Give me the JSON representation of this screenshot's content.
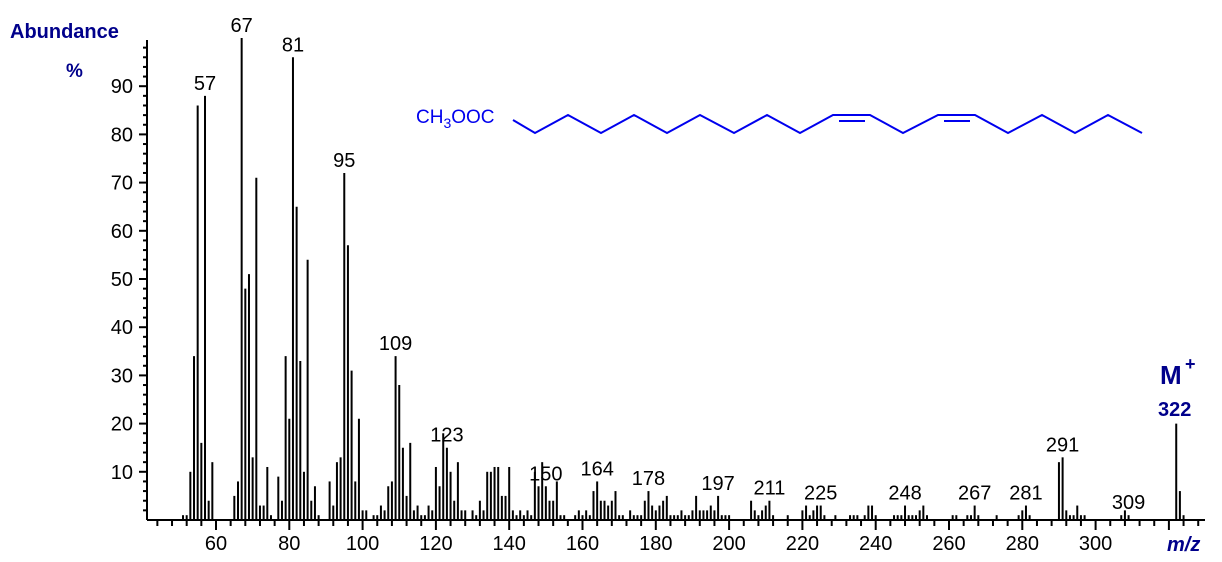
{
  "chart_data": {
    "type": "bar",
    "title": "",
    "ylabel": "Abundance",
    "ylabel_unit": "%",
    "xlabel": "m/z",
    "xlim": [
      40,
      330
    ],
    "ylim": [
      0,
      100
    ],
    "grid": false,
    "yticks": [
      10,
      20,
      30,
      40,
      50,
      60,
      70,
      80,
      90
    ],
    "xticks": [
      60,
      80,
      100,
      120,
      140,
      160,
      180,
      200,
      220,
      240,
      260,
      280,
      300
    ],
    "peaks": [
      [
        51,
        1
      ],
      [
        52,
        1
      ],
      [
        53,
        10
      ],
      [
        54,
        34
      ],
      [
        55,
        86
      ],
      [
        56,
        16
      ],
      [
        57,
        88
      ],
      [
        58,
        4
      ],
      [
        59,
        12
      ],
      [
        65,
        5
      ],
      [
        66,
        8
      ],
      [
        67,
        100
      ],
      [
        68,
        48
      ],
      [
        69,
        51
      ],
      [
        70,
        13
      ],
      [
        71,
        71
      ],
      [
        72,
        3
      ],
      [
        73,
        3
      ],
      [
        74,
        11
      ],
      [
        75,
        1
      ],
      [
        77,
        9
      ],
      [
        78,
        4
      ],
      [
        79,
        34
      ],
      [
        80,
        21
      ],
      [
        81,
        96
      ],
      [
        82,
        65
      ],
      [
        83,
        33
      ],
      [
        84,
        10
      ],
      [
        85,
        54
      ],
      [
        86,
        4
      ],
      [
        87,
        7
      ],
      [
        88,
        1
      ],
      [
        91,
        8
      ],
      [
        92,
        3
      ],
      [
        93,
        12
      ],
      [
        94,
        13
      ],
      [
        95,
        72
      ],
      [
        96,
        57
      ],
      [
        97,
        31
      ],
      [
        98,
        8
      ],
      [
        99,
        21
      ],
      [
        100,
        2
      ],
      [
        101,
        2
      ],
      [
        103,
        1
      ],
      [
        104,
        1
      ],
      [
        105,
        3
      ],
      [
        106,
        2
      ],
      [
        107,
        7
      ],
      [
        108,
        8
      ],
      [
        109,
        34
      ],
      [
        110,
        28
      ],
      [
        111,
        15
      ],
      [
        112,
        5
      ],
      [
        113,
        16
      ],
      [
        114,
        2
      ],
      [
        115,
        3
      ],
      [
        116,
        1
      ],
      [
        117,
        1
      ],
      [
        118,
        3
      ],
      [
        119,
        2
      ],
      [
        120,
        11
      ],
      [
        121,
        7
      ],
      [
        122,
        18
      ],
      [
        123,
        15
      ],
      [
        124,
        10
      ],
      [
        125,
        4
      ],
      [
        126,
        12
      ],
      [
        127,
        2
      ],
      [
        128,
        2
      ],
      [
        130,
        2
      ],
      [
        131,
        1
      ],
      [
        132,
        4
      ],
      [
        133,
        2
      ],
      [
        134,
        10
      ],
      [
        135,
        10
      ],
      [
        136,
        11
      ],
      [
        137,
        11
      ],
      [
        138,
        5
      ],
      [
        139,
        5
      ],
      [
        140,
        11
      ],
      [
        141,
        2
      ],
      [
        142,
        1
      ],
      [
        143,
        2
      ],
      [
        144,
        1
      ],
      [
        145,
        2
      ],
      [
        146,
        1
      ],
      [
        147,
        10
      ],
      [
        148,
        7
      ],
      [
        149,
        12
      ],
      [
        150,
        7
      ],
      [
        151,
        4
      ],
      [
        152,
        4
      ],
      [
        153,
        8
      ],
      [
        154,
        1
      ],
      [
        155,
        1
      ],
      [
        158,
        1
      ],
      [
        159,
        2
      ],
      [
        160,
        1
      ],
      [
        161,
        2
      ],
      [
        162,
        1
      ],
      [
        163,
        6
      ],
      [
        164,
        8
      ],
      [
        165,
        4
      ],
      [
        166,
        4
      ],
      [
        167,
        3
      ],
      [
        168,
        4
      ],
      [
        169,
        6
      ],
      [
        170,
        1
      ],
      [
        171,
        1
      ],
      [
        173,
        2
      ],
      [
        174,
        1
      ],
      [
        175,
        1
      ],
      [
        176,
        1
      ],
      [
        177,
        4
      ],
      [
        178,
        6
      ],
      [
        179,
        3
      ],
      [
        180,
        2
      ],
      [
        181,
        3
      ],
      [
        182,
        4
      ],
      [
        183,
        5
      ],
      [
        184,
        1
      ],
      [
        185,
        1
      ],
      [
        186,
        1
      ],
      [
        187,
        2
      ],
      [
        188,
        1
      ],
      [
        189,
        1
      ],
      [
        190,
        2
      ],
      [
        191,
        5
      ],
      [
        192,
        2
      ],
      [
        193,
        2
      ],
      [
        194,
        2
      ],
      [
        195,
        3
      ],
      [
        196,
        2
      ],
      [
        197,
        5
      ],
      [
        198,
        1
      ],
      [
        199,
        1
      ],
      [
        200,
        1
      ],
      [
        206,
        4
      ],
      [
        207,
        2
      ],
      [
        208,
        1
      ],
      [
        209,
        2
      ],
      [
        210,
        3
      ],
      [
        211,
        4
      ],
      [
        212,
        1
      ],
      [
        216,
        1
      ],
      [
        220,
        2
      ],
      [
        221,
        3
      ],
      [
        222,
        1
      ],
      [
        223,
        2
      ],
      [
        224,
        3
      ],
      [
        225,
        3
      ],
      [
        226,
        1
      ],
      [
        229,
        1
      ],
      [
        233,
        1
      ],
      [
        234,
        1
      ],
      [
        235,
        1
      ],
      [
        237,
        1
      ],
      [
        238,
        3
      ],
      [
        239,
        3
      ],
      [
        240,
        1
      ],
      [
        245,
        1
      ],
      [
        246,
        1
      ],
      [
        247,
        1
      ],
      [
        248,
        3
      ],
      [
        249,
        1
      ],
      [
        250,
        1
      ],
      [
        251,
        1
      ],
      [
        252,
        2
      ],
      [
        253,
        3
      ],
      [
        254,
        1
      ],
      [
        261,
        1
      ],
      [
        262,
        1
      ],
      [
        265,
        1
      ],
      [
        266,
        1
      ],
      [
        267,
        3
      ],
      [
        268,
        1
      ],
      [
        273,
        1
      ],
      [
        279,
        1
      ],
      [
        280,
        2
      ],
      [
        281,
        3
      ],
      [
        282,
        1
      ],
      [
        290,
        12
      ],
      [
        291,
        13
      ],
      [
        292,
        2
      ],
      [
        293,
        1
      ],
      [
        294,
        1
      ],
      [
        295,
        3
      ],
      [
        296,
        1
      ],
      [
        297,
        1
      ],
      [
        307,
        1
      ],
      [
        308,
        2
      ],
      [
        309,
        1
      ],
      [
        322,
        20
      ],
      [
        323,
        6
      ],
      [
        324,
        1
      ]
    ],
    "annotations": [
      {
        "mz": 57,
        "text": "57"
      },
      {
        "mz": 67,
        "text": "67"
      },
      {
        "mz": 81,
        "text": "81"
      },
      {
        "mz": 95,
        "text": "95"
      },
      {
        "mz": 109,
        "text": "109"
      },
      {
        "mz": 123,
        "text": "123"
      },
      {
        "mz": 150,
        "text": "150"
      },
      {
        "mz": 164,
        "text": "164"
      },
      {
        "mz": 178,
        "text": "178"
      },
      {
        "mz": 197,
        "text": "197"
      },
      {
        "mz": 211,
        "text": "211"
      },
      {
        "mz": 225,
        "text": "225"
      },
      {
        "mz": 248,
        "text": "248"
      },
      {
        "mz": 267,
        "text": "267"
      },
      {
        "mz": 281,
        "text": "281"
      },
      {
        "mz": 291,
        "text": "291"
      },
      {
        "mz": 309,
        "text": "309"
      }
    ],
    "molecular_ion": {
      "label": "M",
      "charge": "+",
      "mz": "322"
    },
    "structure": {
      "formula_prefix": "CH",
      "formula_sub": "3",
      "formula_suffix": "OOC",
      "color": "#0000ee"
    },
    "colors": {
      "axis_label": "#00008b",
      "bars": "#000000",
      "structure": "#0000ee"
    }
  }
}
